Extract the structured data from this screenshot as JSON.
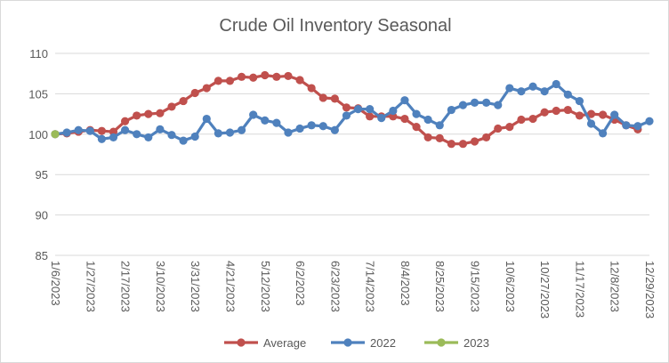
{
  "chart_data": {
    "type": "line",
    "title": "Crude Oil Inventory Seasonal",
    "xlabel": "",
    "ylabel": "",
    "ylim": [
      85,
      110
    ],
    "yticks": [
      85,
      90,
      95,
      100,
      105,
      110
    ],
    "grid": true,
    "legend_position": "bottom",
    "x_tick_labels": [
      "1/6/2023",
      "1/27/2023",
      "2/17/2023",
      "3/10/2023",
      "3/31/2023",
      "4/21/2023",
      "5/12/2023",
      "6/2/2023",
      "6/23/2023",
      "7/14/2023",
      "8/4/2023",
      "8/25/2023",
      "9/15/2023",
      "10/6/2023",
      "10/27/2023",
      "11/17/2023",
      "12/8/2023",
      "12/29/2023"
    ],
    "series": [
      {
        "name": "Average",
        "color": "#c0504d",
        "values": [
          100.0,
          100.1,
          100.3,
          100.5,
          100.4,
          100.3,
          101.6,
          102.3,
          102.5,
          102.6,
          103.4,
          104.1,
          105.1,
          105.7,
          106.6,
          106.6,
          107.1,
          107.0,
          107.3,
          107.1,
          107.2,
          106.7,
          105.7,
          104.5,
          104.4,
          103.3,
          103.2,
          102.2,
          102.2,
          102.2,
          101.9,
          100.9,
          99.6,
          99.5,
          98.8,
          98.8,
          99.1,
          99.6,
          100.7,
          100.9,
          101.8,
          101.9,
          102.7,
          102.9,
          103.0,
          102.3,
          102.5,
          102.4,
          101.8,
          101.1,
          100.6
        ]
      },
      {
        "name": "2022",
        "color": "#4f81bd",
        "values": [
          100.0,
          100.2,
          100.5,
          100.4,
          99.4,
          99.6,
          100.5,
          100.0,
          99.6,
          100.6,
          99.9,
          99.2,
          99.7,
          101.9,
          100.1,
          100.2,
          100.5,
          102.4,
          101.7,
          101.4,
          100.2,
          100.7,
          101.1,
          101.0,
          100.5,
          102.3,
          103.1,
          103.1,
          102.0,
          102.9,
          104.2,
          102.5,
          101.8,
          101.1,
          103.0,
          103.6,
          103.9,
          103.9,
          103.6,
          105.7,
          105.3,
          105.9,
          105.3,
          106.2,
          104.9,
          104.1,
          101.3,
          100.1,
          102.4,
          101.1,
          101.0,
          101.6
        ]
      },
      {
        "name": "2023",
        "color": "#9bbb59",
        "values": [
          100.0
        ]
      }
    ]
  }
}
